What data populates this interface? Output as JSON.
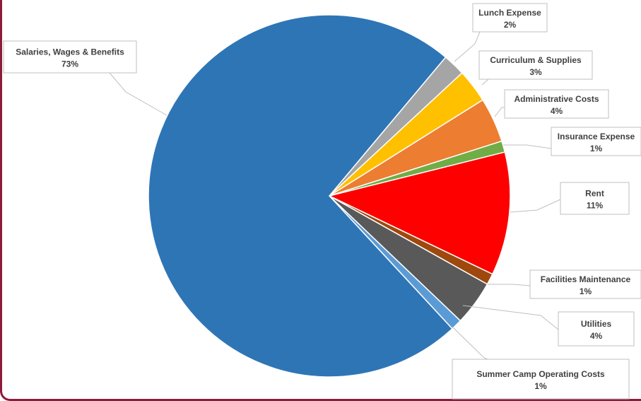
{
  "chart_data": {
    "type": "pie",
    "title": "",
    "slices": [
      {
        "label": "Lunch Expense",
        "value": 2,
        "value_label": "2%",
        "color": "#a5a5a5"
      },
      {
        "label": "Curriculum & Supplies",
        "value": 3,
        "value_label": "3%",
        "color": "#ffc000"
      },
      {
        "label": "Administrative Costs",
        "value": 4,
        "value_label": "4%",
        "color": "#ed7d31"
      },
      {
        "label": "Insurance Expense",
        "value": 1,
        "value_label": "1%",
        "color": "#70ad47"
      },
      {
        "label": "Rent",
        "value": 11,
        "value_label": "11%",
        "color": "#ff0000"
      },
      {
        "label": "Facilities Maintenance",
        "value": 1,
        "value_label": "1%",
        "color": "#9e480e"
      },
      {
        "label": "Utilities",
        "value": 4,
        "value_label": "4%",
        "color": "#595959"
      },
      {
        "label": "Summer Camp Operating Costs",
        "value": 1,
        "value_label": "1%",
        "color": "#5b9bd5"
      },
      {
        "label": "Salaries, Wages & Benefits",
        "value": 73,
        "value_label": "73%",
        "color": "#2e75b6"
      }
    ],
    "start_angle_deg": 40,
    "direction": "clockwise",
    "legend": "none",
    "data_labels": "callout boxes with leader lines"
  }
}
